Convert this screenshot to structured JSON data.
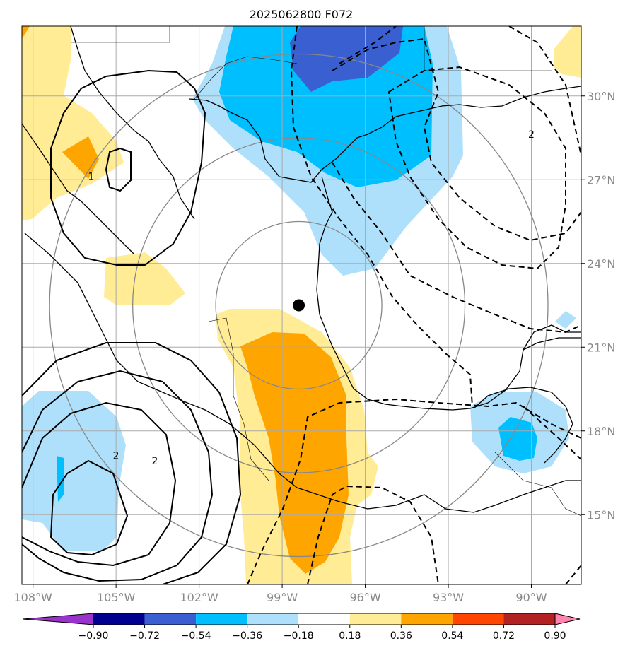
{
  "chart_data": {
    "type": "heatmap",
    "title": "2025062800 F072",
    "x_axis": {
      "ticks": [
        {
          "value": -108,
          "label": "108°W"
        },
        {
          "value": -105,
          "label": "105°W"
        },
        {
          "value": -102,
          "label": "102°W"
        },
        {
          "value": -99,
          "label": "99°W"
        },
        {
          "value": -96,
          "label": "96°W"
        },
        {
          "value": -93,
          "label": "93°W"
        },
        {
          "value": -90,
          "label": "90°W"
        }
      ],
      "range": [
        -108.4,
        -88.2
      ]
    },
    "y_axis": {
      "position": "right",
      "ticks": [
        {
          "value": 15,
          "label": "15°N"
        },
        {
          "value": 18,
          "label": "18°N"
        },
        {
          "value": 21,
          "label": "21°N"
        },
        {
          "value": 24,
          "label": "24°N"
        },
        {
          "value": 27,
          "label": "27°N"
        },
        {
          "value": 30,
          "label": "30°N"
        }
      ],
      "range": [
        12.5,
        32.5
      ]
    },
    "grid": true,
    "colorbar": {
      "orientation": "horizontal",
      "extend": "both",
      "levels": [
        -0.9,
        -0.72,
        -0.54,
        -0.36,
        -0.18,
        0.18,
        0.36,
        0.54,
        0.72,
        0.9
      ],
      "tick_labels": [
        "−0.90",
        "−0.72",
        "−0.54",
        "−0.36",
        "−0.18",
        "0.18",
        "0.36",
        "0.54",
        "0.72",
        "0.90"
      ],
      "colors": [
        "#9933cc",
        "#000090",
        "#3a5fd0",
        "#00bfff",
        "#aee0fb",
        "#ffffff",
        "#ffec94",
        "#ffa500",
        "#ff4500",
        "#b22222",
        "#ff85b0"
      ]
    },
    "center_marker": {
      "lon": -98.4,
      "lat": 22.5
    },
    "range_rings_deg": [
      3,
      6,
      9
    ],
    "shading_colors": {
      "light_blue": "#aee0fb",
      "blue": "#00bfff",
      "dark_blue": "#3a5fd0",
      "light_yellow": "#ffec94",
      "orange": "#ffa500"
    },
    "contour_labels": [
      {
        "text": "1",
        "lon": -105.9,
        "lat": 27.0
      },
      {
        "text": "2",
        "lon": -103.6,
        "lat": 16.8
      },
      {
        "text": "2",
        "lon": -105.0,
        "lat": 17.0
      },
      {
        "text": "2",
        "lon": -90.0,
        "lat": 28.5
      }
    ]
  }
}
